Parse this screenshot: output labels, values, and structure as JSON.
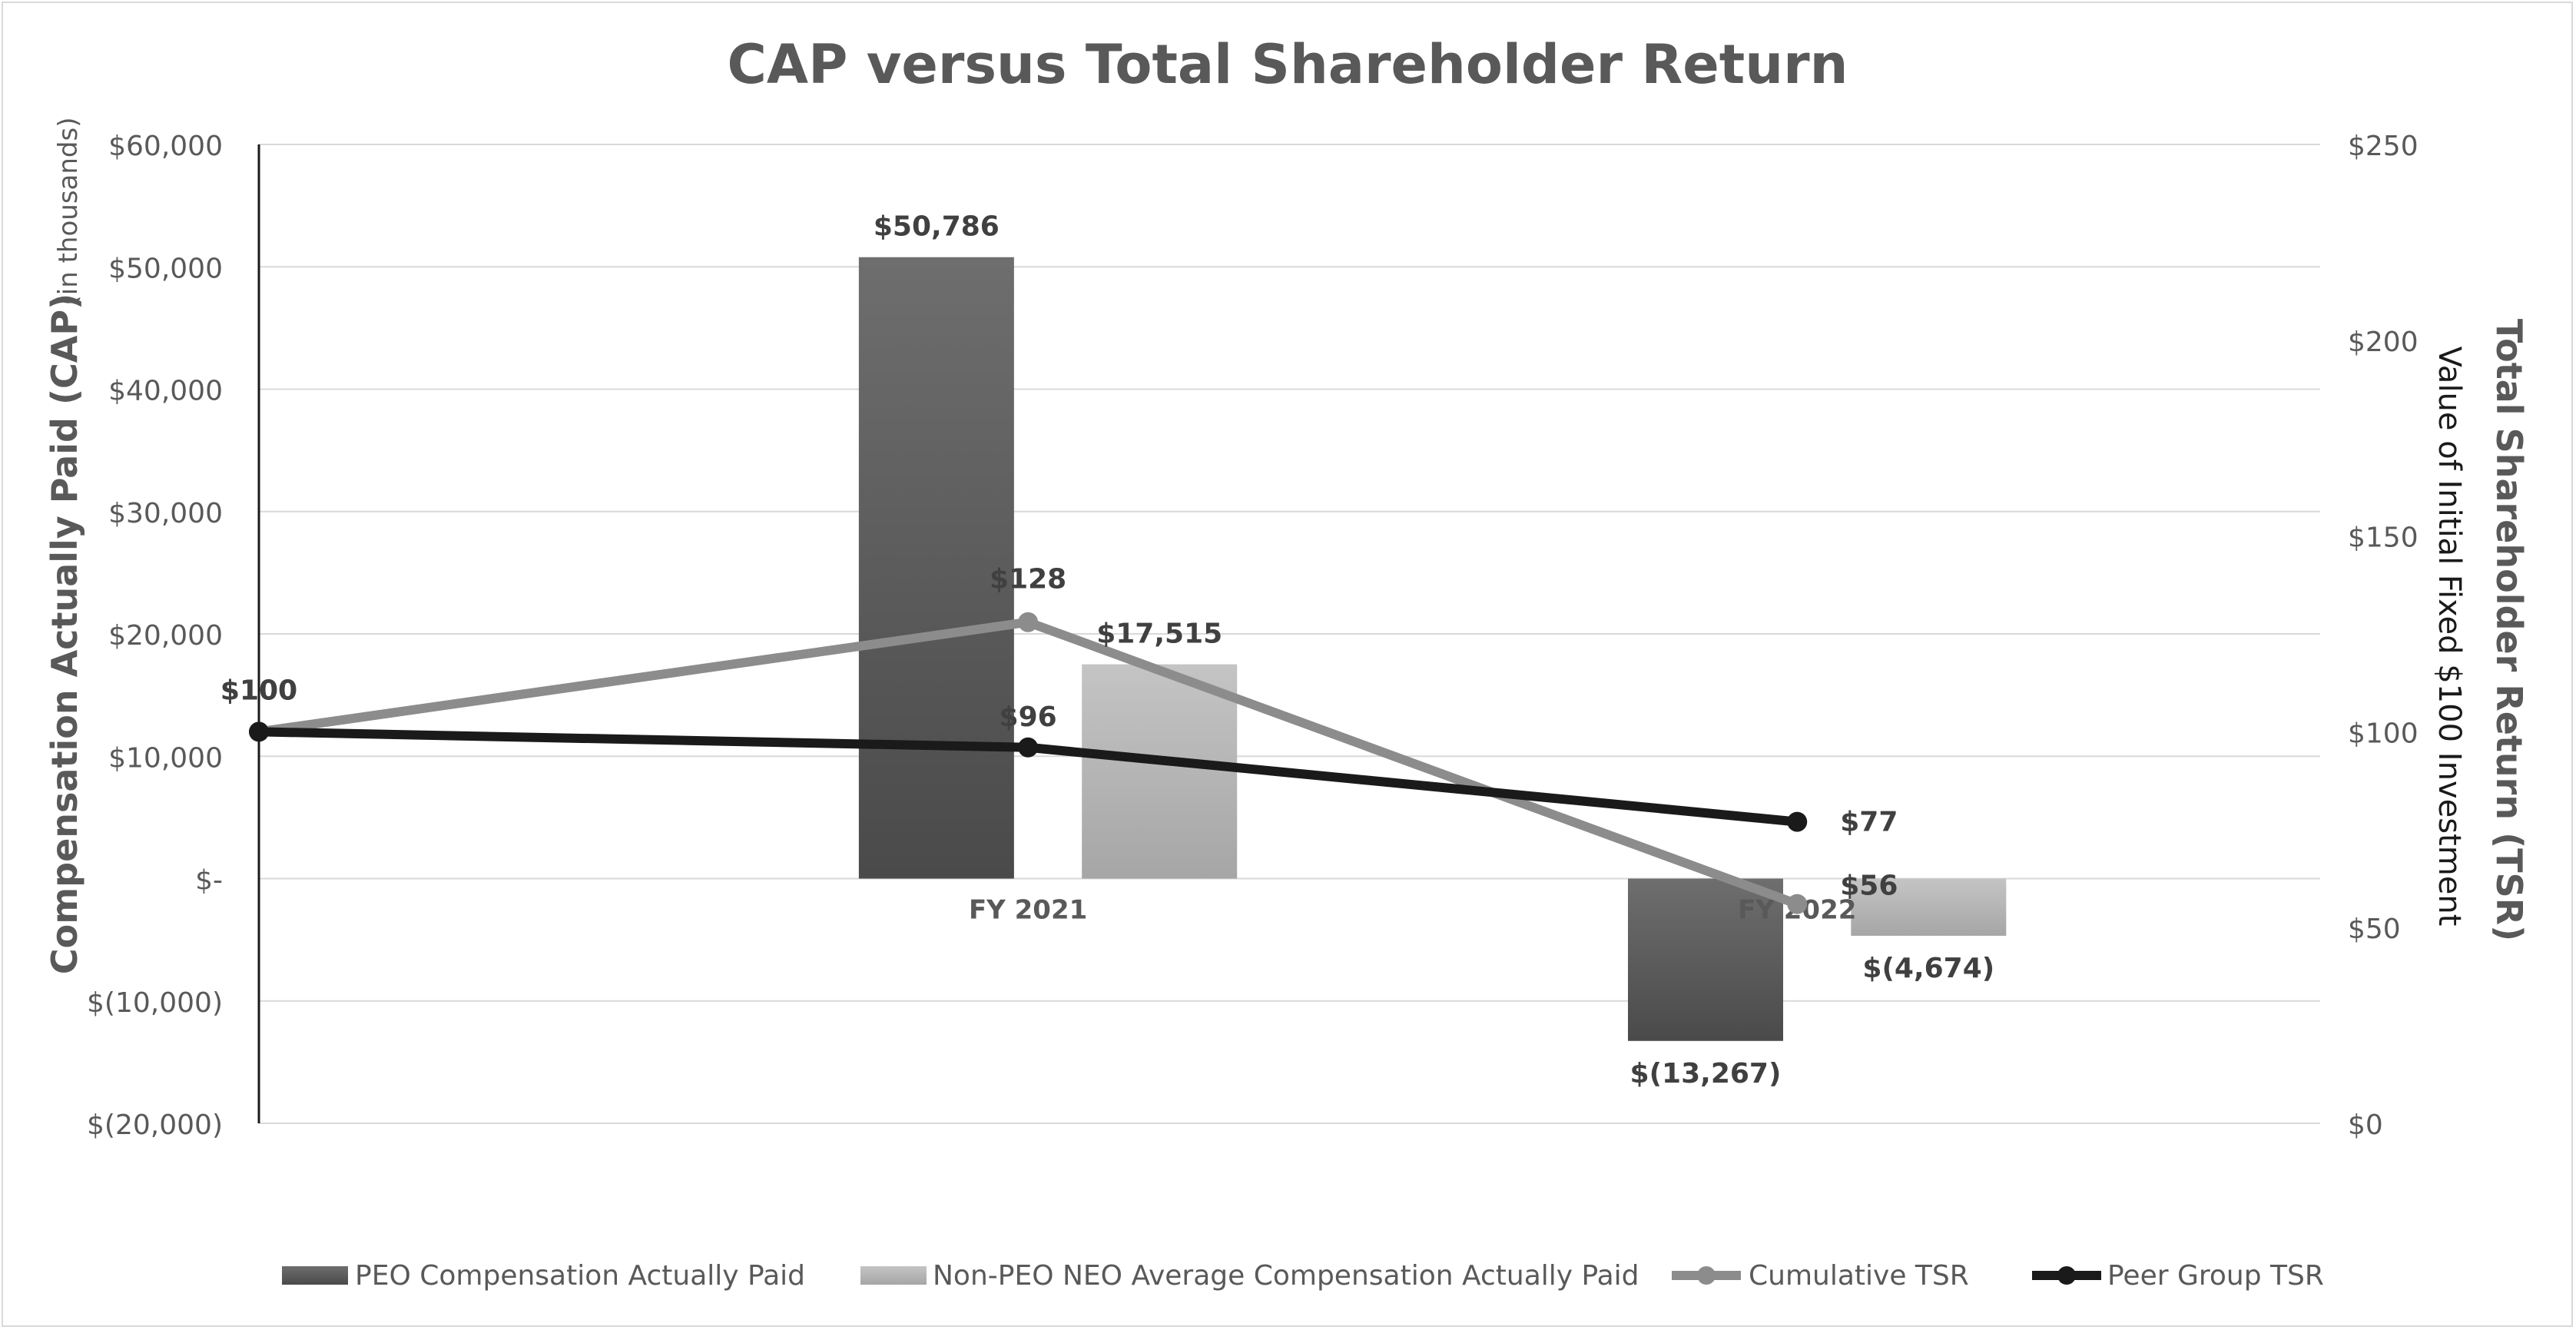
{
  "chart_data": {
    "type": "bar",
    "title": "CAP versus Total Shareholder Return",
    "categories": [
      "FY 2021",
      "FY 2022"
    ],
    "y_left": {
      "label": "Compensation Actually Paid (CAP)",
      "sublabel": "(in thousands)",
      "ylim": [
        -20000,
        60000
      ],
      "ticks": [
        60000,
        50000,
        40000,
        30000,
        20000,
        10000,
        0,
        -10000,
        -20000
      ],
      "tick_labels": [
        "$60,000",
        "$50,000",
        "$40,000",
        "$30,000",
        "$20,000",
        "$10,000",
        "$-",
        "$(10,000)",
        "$(20,000)"
      ]
    },
    "y_right": {
      "label": "Total Shareholder Return (TSR)",
      "sublabel": "Value of Initial Fixed $100 Investment",
      "ylim": [
        0,
        250
      ],
      "ticks": [
        250,
        200,
        150,
        100,
        50,
        0
      ],
      "tick_labels": [
        "$250",
        "$200",
        "$150",
        "$100",
        "$50",
        "$0"
      ]
    },
    "bar_series": [
      {
        "name": "PEO Compensation Actually Paid",
        "color": "#595959",
        "values": [
          50786,
          -13267
        ],
        "labels": [
          "$50,786",
          "$(13,267)"
        ]
      },
      {
        "name": "Non-PEO NEO Average Compensation Actually Paid",
        "color": "#b3b3b3",
        "values": [
          17515,
          -4674
        ],
        "labels": [
          "$17,515",
          "$(4,674)"
        ]
      }
    ],
    "line_series": [
      {
        "name": "Cumulative TSR",
        "color": "#8c8c8c",
        "x": [
          0,
          1,
          2
        ],
        "values": [
          100,
          128,
          56
        ],
        "labels": [
          "$100",
          "$128",
          "$56"
        ]
      },
      {
        "name": "Peer Group TSR",
        "color": "#1a1a1a",
        "x": [
          0,
          1,
          2
        ],
        "values": [
          100,
          96,
          77
        ],
        "labels": [
          "$100",
          "$96",
          "$77"
        ]
      }
    ],
    "grid": true,
    "legend_position": "bottom"
  }
}
